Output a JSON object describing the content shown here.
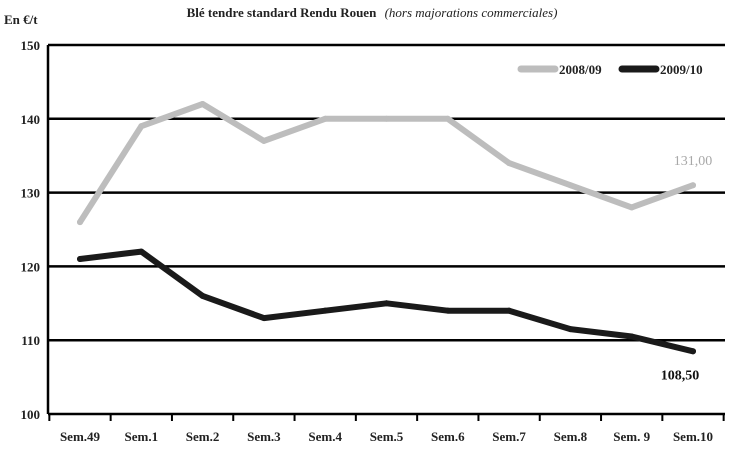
{
  "chart_data": {
    "type": "line",
    "title": "Blé tendre standard Rendu Rouen",
    "subtitle": "(hors majorations commerciales)",
    "ylabel": "En €/t",
    "xlabel": "",
    "categories": [
      "Sem.49",
      "Sem.1",
      "Sem.2",
      "Sem.3",
      "Sem.4",
      "Sem.5",
      "Sem.6",
      "Sem.7",
      "Sem.8",
      "Sem. 9",
      "Sem.10"
    ],
    "ylim": [
      100,
      150
    ],
    "yticks": [
      "100",
      "110",
      "120",
      "130",
      "140",
      "150"
    ],
    "grid": "horizontal",
    "legend_position": "top-right",
    "series": [
      {
        "name": "2008/09",
        "color": "#bdbdbd",
        "values": [
          126,
          139,
          142,
          137,
          140,
          140,
          140,
          134,
          131,
          128,
          131
        ],
        "end_label": "131,00"
      },
      {
        "name": "2009/10",
        "color": "#1a1a1a",
        "values": [
          121,
          122,
          116,
          113,
          114,
          115,
          114,
          114,
          111.5,
          110.5,
          108.5
        ],
        "end_label": "108,50"
      }
    ]
  }
}
